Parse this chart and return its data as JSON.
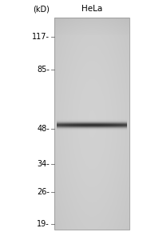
{
  "title": "HeLa",
  "kd_label": "(kD)",
  "markers": [
    117,
    85,
    48,
    34,
    26,
    19
  ],
  "band_mw": 50,
  "figure_bg": "#ffffff",
  "gel_bg_color": 0.8,
  "title_fontsize": 7.5,
  "marker_fontsize": 7,
  "kd_fontsize": 7,
  "log_max": 4.95,
  "log_min": 2.89
}
